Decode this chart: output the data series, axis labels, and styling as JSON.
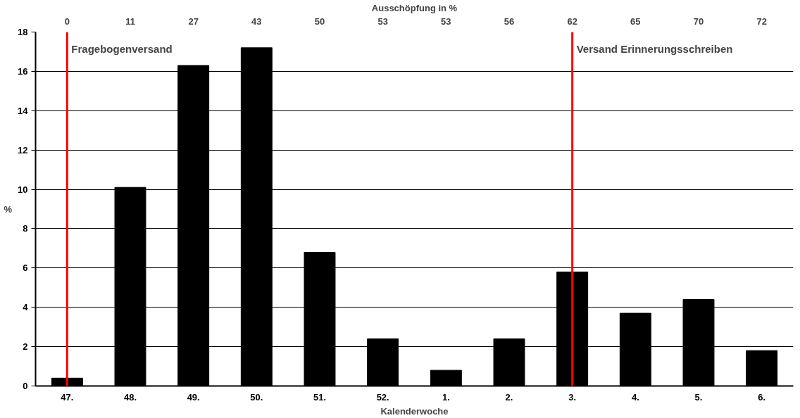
{
  "chart_data": {
    "type": "bar",
    "xlabel": "Kalenderwoche",
    "ylabel": "%",
    "x2label": "Ausschöpfung in %",
    "categories": [
      "47.",
      "48.",
      "49.",
      "50.",
      "51.",
      "52.",
      "1.",
      "2.",
      "3.",
      "4.",
      "5.",
      "6."
    ],
    "series": [
      {
        "color": "#000000",
        "values": [
          0.4,
          10.1,
          16.3,
          17.2,
          6.8,
          2.4,
          0.8,
          2.4,
          5.8,
          3.7,
          4.4,
          1.8
        ]
      }
    ],
    "ylim": [
      0,
      18
    ],
    "yticks": [
      0,
      2,
      4,
      6,
      8,
      10,
      12,
      14,
      16,
      18
    ],
    "annotations": [
      "0",
      "11",
      "27",
      "43",
      "50",
      "53",
      "53",
      "56",
      "62",
      "65",
      "70",
      "72"
    ],
    "ref_lines": [
      {
        "axis": "x",
        "value": "47.",
        "label": "Fragebogenversand",
        "color": "#ff0000"
      },
      {
        "axis": "x",
        "value": "3.",
        "label": "Versand Erinnerungsschreiben",
        "color": "#ff0000"
      }
    ],
    "grid": "y"
  }
}
